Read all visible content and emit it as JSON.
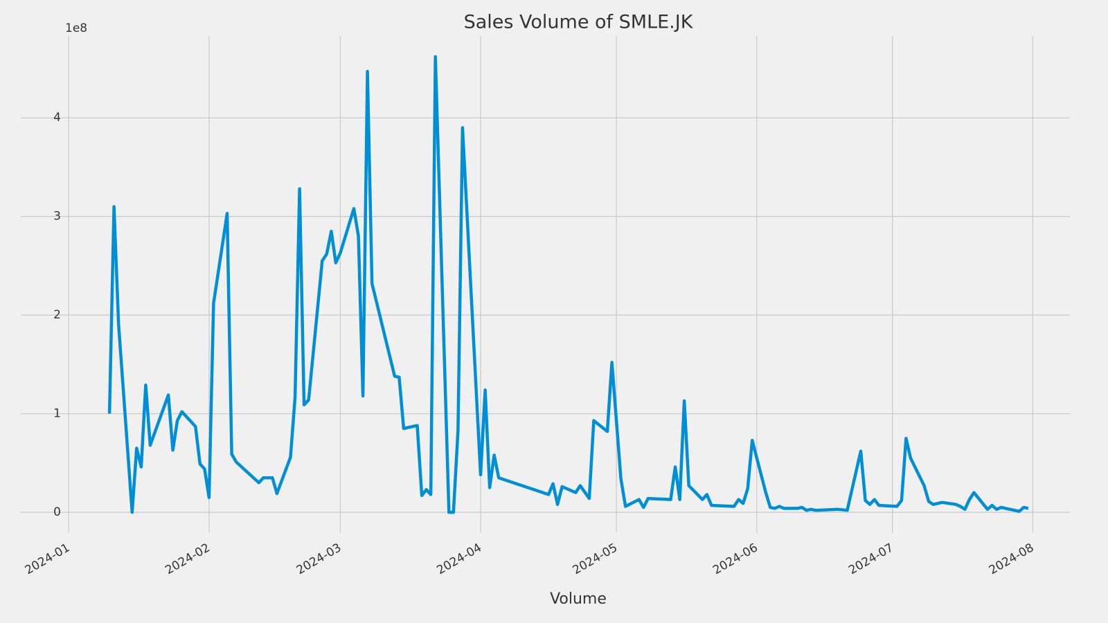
{
  "chart_data": {
    "type": "line",
    "title": "Sales Volume of SMLE.JK",
    "xlabel": "Volume",
    "y_offset_label": "1e8",
    "color": "#008fd5",
    "grid": true,
    "x": [
      9,
      10,
      11,
      14,
      15,
      16,
      17,
      18,
      22,
      23,
      24,
      25,
      28,
      29,
      30,
      31,
      32,
      35,
      36,
      37,
      42,
      43,
      45,
      46,
      49,
      50,
      51,
      52,
      53,
      56,
      57,
      58,
      59,
      60,
      63,
      64,
      65,
      66,
      67,
      72,
      73,
      74,
      77,
      78,
      79,
      80,
      81,
      84,
      85,
      86,
      87,
      91,
      92,
      93,
      94,
      95,
      106,
      107,
      108,
      109,
      112,
      113,
      115,
      116,
      119,
      120,
      122,
      123,
      126,
      127,
      128,
      133,
      134,
      135,
      136,
      137,
      140,
      141,
      142,
      147,
      148,
      149,
      150,
      151,
      154,
      155,
      156,
      157,
      158,
      161,
      162,
      163,
      164,
      165,
      170,
      172,
      175,
      176,
      177,
      178,
      179,
      183,
      184,
      185,
      186,
      189,
      190,
      191,
      193,
      196,
      197,
      198,
      199,
      200,
      203,
      204,
      205,
      206,
      207,
      210,
      211,
      212
    ],
    "values": [
      1.0,
      3.1,
      1.91,
      0.0,
      0.65,
      0.46,
      1.29,
      0.68,
      1.19,
      0.63,
      0.93,
      1.02,
      0.87,
      0.49,
      0.44,
      0.15,
      2.12,
      3.03,
      0.59,
      0.51,
      0.3,
      0.35,
      0.35,
      0.19,
      0.56,
      1.17,
      3.28,
      1.09,
      1.14,
      2.55,
      2.62,
      2.85,
      2.53,
      2.63,
      3.08,
      2.8,
      1.18,
      4.47,
      2.32,
      1.38,
      1.37,
      0.85,
      0.88,
      0.17,
      0.23,
      0.18,
      4.62,
      0.0,
      0.0,
      0.83,
      3.9,
      0.38,
      1.24,
      0.25,
      0.58,
      0.35,
      0.18,
      0.29,
      0.08,
      0.26,
      0.2,
      0.27,
      0.14,
      0.93,
      0.82,
      1.52,
      0.34,
      0.06,
      0.13,
      0.05,
      0.14,
      0.13,
      0.46,
      0.13,
      1.13,
      0.27,
      0.13,
      0.18,
      0.07,
      0.06,
      0.13,
      0.09,
      0.24,
      0.73,
      0.2,
      0.05,
      0.04,
      0.06,
      0.04,
      0.04,
      0.05,
      0.02,
      0.03,
      0.02,
      0.03,
      0.02,
      0.62,
      0.12,
      0.08,
      0.13,
      0.07,
      0.06,
      0.12,
      0.75,
      0.55,
      0.27,
      0.11,
      0.08,
      0.1,
      0.08,
      0.06,
      0.03,
      0.13,
      0.2,
      0.03,
      0.07,
      0.03,
      0.05,
      0.04,
      0.01,
      0.05,
      0.04
    ],
    "xlim": [
      -10.6,
      221.2
    ],
    "xticks": [
      {
        "value": 0,
        "label": "2024-01"
      },
      {
        "value": 31,
        "label": "2024-02"
      },
      {
        "value": 60,
        "label": "2024-03"
      },
      {
        "value": 91,
        "label": "2024-04"
      },
      {
        "value": 121,
        "label": "2024-05"
      },
      {
        "value": 152,
        "label": "2024-06"
      },
      {
        "value": 182,
        "label": "2024-07"
      },
      {
        "value": 213,
        "label": "2024-08"
      }
    ],
    "ylim": [
      -0.21,
      4.83
    ],
    "yticks": [
      0,
      1,
      2,
      3,
      4
    ]
  }
}
